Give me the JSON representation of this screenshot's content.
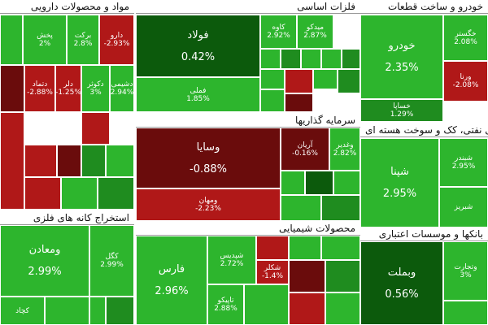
{
  "sectors": [
    {
      "title": "مواد و محصولات دارویی",
      "tiles": [
        {
          "label": "پخش",
          "value": "2%"
        },
        {
          "label": "برکت",
          "value": "2.8%"
        },
        {
          "label": "دارو",
          "value": "-2.93%"
        },
        {
          "label": "دتماد",
          "value": "-2.88%"
        },
        {
          "label": "دلر",
          "value": "-1.25%"
        },
        {
          "label": "دکوثر",
          "value": "3%"
        },
        {
          "label": "دشیمی",
          "value": "2.94%"
        }
      ]
    },
    {
      "title": "فلزات اساسی",
      "tiles": [
        {
          "label": "فولاد",
          "value": "0.42%"
        },
        {
          "label": "فملی",
          "value": "1.85%"
        },
        {
          "label": "کاوه",
          "value": "2.92%"
        },
        {
          "label": "میدکو",
          "value": "2.87%"
        }
      ]
    },
    {
      "title": "خودرو و ساخت قطعات",
      "tiles": [
        {
          "label": "خودرو",
          "value": "2.35%"
        },
        {
          "label": "خگستر",
          "value": "2.08%"
        },
        {
          "label": "ورنا",
          "value": "-2.08%"
        },
        {
          "label": "خساپا",
          "value": "1.29%"
        }
      ]
    },
    {
      "title": "سرمایه گذاریها",
      "tiles": [
        {
          "label": "وسایا",
          "value": "-0.88%"
        },
        {
          "label": "ومهان",
          "value": "-2.23%"
        },
        {
          "label": "آریان",
          "value": "-0.16%"
        },
        {
          "label": "وغدیر",
          "value": "2.82%"
        }
      ]
    },
    {
      "title": "فرآورده های نفتی، کک و سوخت هسته ای",
      "tiles": [
        {
          "label": "شپنا",
          "value": "2.95%"
        },
        {
          "label": "شبندر",
          "value": "2.95%"
        },
        {
          "label": "شبریز"
        }
      ]
    },
    {
      "title": "استخراج کانه های فلزی",
      "tiles": [
        {
          "label": "ومعادن",
          "value": "2.99%"
        },
        {
          "label": "کگل",
          "value": "2.99%"
        },
        {
          "label": "کچاد"
        }
      ]
    },
    {
      "title": "محصولات شیمیایی",
      "tiles": [
        {
          "label": "فارس",
          "value": "2.96%"
        },
        {
          "label": "شپدیس",
          "value": "2.72%"
        },
        {
          "label": "تاپیکو",
          "value": "2.88%"
        },
        {
          "label": "شکلر",
          "value": "-1.4%"
        }
      ]
    },
    {
      "title": "بانکها و موسسات اعتباری",
      "tiles": [
        {
          "label": "وبملت",
          "value": "0.56%"
        },
        {
          "label": "وتجارت",
          "value": "3%"
        }
      ]
    }
  ]
}
